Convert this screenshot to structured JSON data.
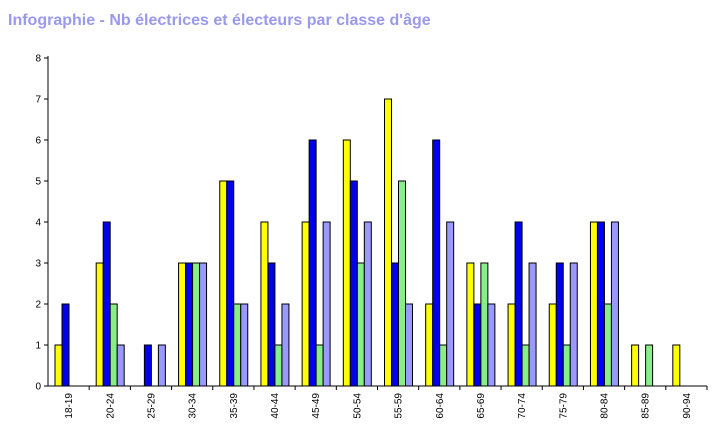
{
  "chart_data": {
    "type": "bar",
    "title": "Infographie - Nb électrices et électeurs par classe d'âge",
    "categories": [
      "18-19",
      "20-24",
      "25-29",
      "30-34",
      "35-39",
      "40-44",
      "45-49",
      "50-54",
      "55-59",
      "60-64",
      "65-69",
      "70-74",
      "75-79",
      "80-84",
      "85-89",
      "90-94"
    ],
    "series": [
      {
        "color": "#ffff00",
        "values": [
          1,
          3,
          0,
          3,
          5,
          4,
          4,
          6,
          7,
          2,
          3,
          2,
          2,
          4,
          1,
          1
        ]
      },
      {
        "color": "#0000ee",
        "values": [
          2,
          4,
          1,
          3,
          5,
          3,
          6,
          5,
          3,
          6,
          2,
          4,
          3,
          4,
          0,
          0
        ]
      },
      {
        "color": "#88ee88",
        "values": [
          0,
          2,
          0,
          3,
          2,
          1,
          1,
          3,
          5,
          1,
          3,
          1,
          1,
          2,
          1,
          0
        ]
      },
      {
        "color": "#9999ff",
        "values": [
          0,
          1,
          1,
          3,
          2,
          2,
          4,
          4,
          2,
          4,
          2,
          3,
          3,
          4,
          0,
          0
        ]
      }
    ],
    "ylim": [
      0,
      8
    ],
    "yticks": [
      "0",
      "1",
      "2",
      "3",
      "4",
      "5",
      "6",
      "7",
      "8"
    ],
    "grid": false,
    "legend": "none"
  }
}
